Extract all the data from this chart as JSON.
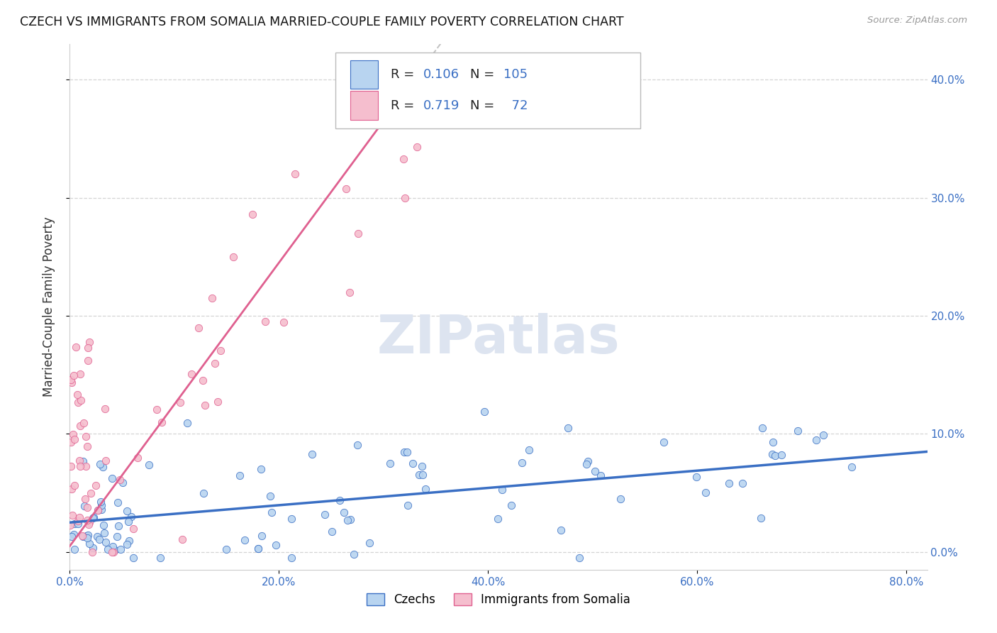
{
  "title": "CZECH VS IMMIGRANTS FROM SOMALIA MARRIED-COUPLE FAMILY POVERTY CORRELATION CHART",
  "source": "Source: ZipAtlas.com",
  "ylabel": "Married-Couple Family Poverty",
  "xlim": [
    0.0,
    0.82
  ],
  "ylim": [
    -0.015,
    0.43
  ],
  "czech_R": 0.106,
  "czech_N": 105,
  "somalia_R": 0.719,
  "somalia_N": 72,
  "czech_color": "#b8d4f0",
  "somalia_color": "#f5bece",
  "czech_line_color": "#3a6fc4",
  "somalia_line_color": "#e06090",
  "watermark": "ZIPatlas",
  "legend_label_1": "Czechs",
  "legend_label_2": "Immigrants from Somalia",
  "background_color": "#ffffff",
  "grid_color": "#d0d0d0",
  "r_n_color": "#3a6fc4",
  "tick_color": "#3a6fc4",
  "czech_trend_x0": 0.0,
  "czech_trend_x1": 0.82,
  "czech_trend_y0": 0.025,
  "czech_trend_y1": 0.085,
  "somalia_trend_x0": 0.0,
  "somalia_trend_x1": 0.3,
  "somalia_trend_y0": 0.005,
  "somalia_trend_y1": 0.365
}
